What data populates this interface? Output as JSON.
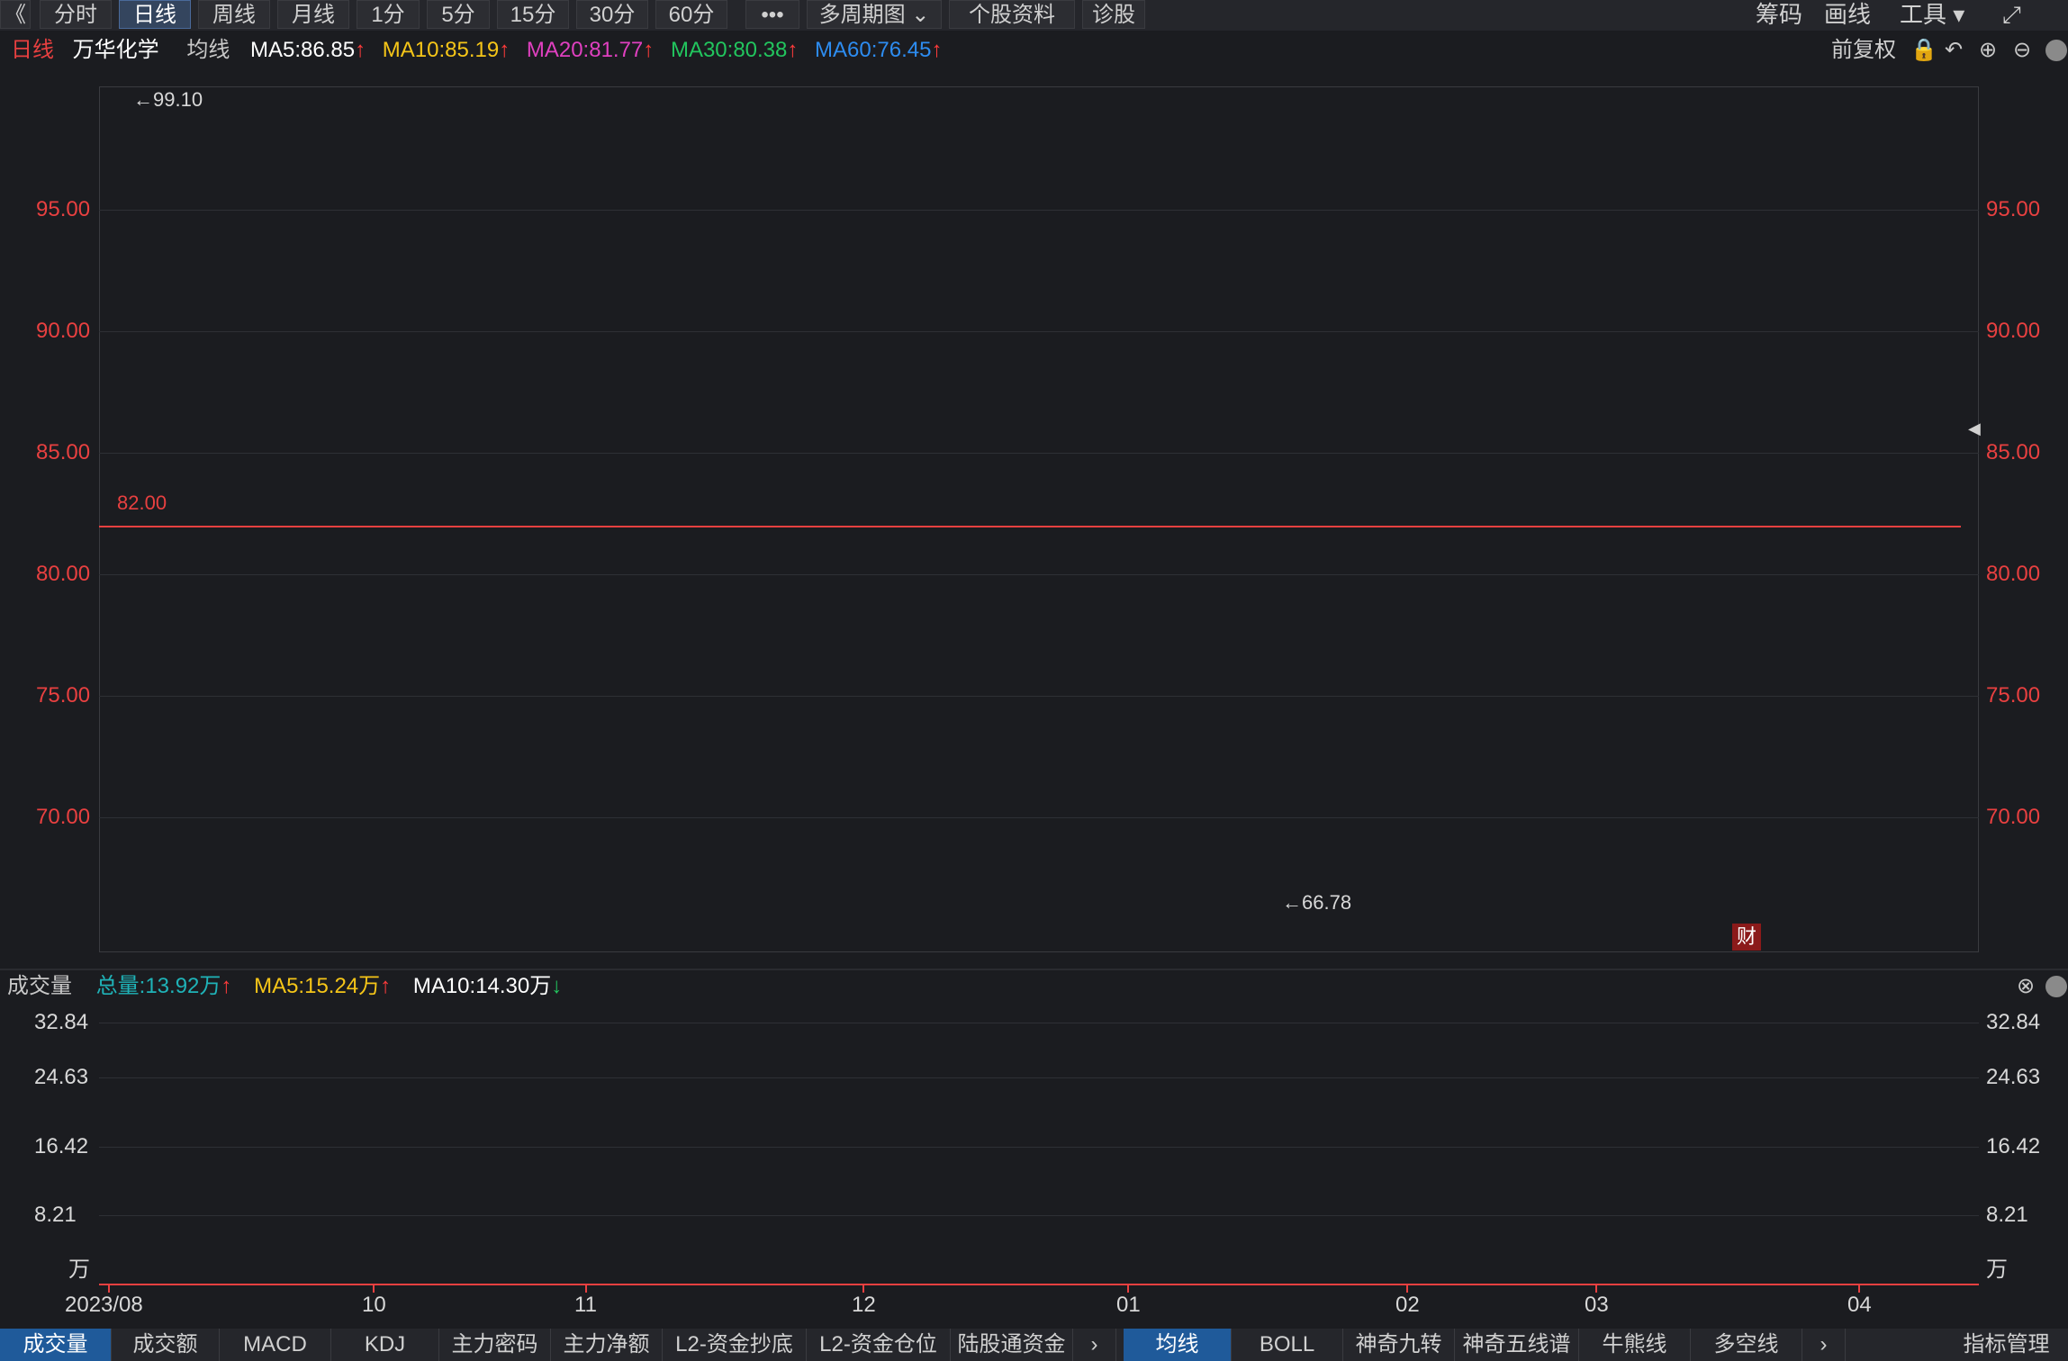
{
  "toolbar": {
    "back": "《",
    "periods": [
      "分时",
      "日线",
      "周线",
      "月线",
      "1分",
      "5分",
      "15分",
      "30分",
      "60分"
    ],
    "more": "•••",
    "multi": "多周期图",
    "stock_info": "个股资料",
    "diagnose": "诊股",
    "chips": "筹码",
    "draw": "画线",
    "tools": "工具"
  },
  "legend": {
    "period": "日线",
    "stock": "万华化学",
    "ma_label": "均线",
    "ma5": "MA5:86.85",
    "ma10": "MA10:85.19",
    "ma20": "MA20:81.77",
    "ma30": "MA30:80.38",
    "ma60": "MA60:76.45",
    "adjust": "前复权"
  },
  "vol_legend": {
    "title": "成交量",
    "total": "总量:13.92万",
    "ma5": "MA5:15.24万",
    "ma10": "MA10:14.30万"
  },
  "colors": {
    "up": "#ff3b3b",
    "down": "#1fb3b8",
    "ma5": "#ffffff",
    "ma10": "#f5c518",
    "ma20": "#e040c0",
    "ma30": "#22c55e",
    "ma60": "#2d8cf0",
    "hline": "#e84040"
  },
  "price_axis": [
    "95.00",
    "90.00",
    "85.00",
    "80.00",
    "75.00",
    "70.00"
  ],
  "volume_axis": [
    "32.84",
    "24.63",
    "16.42",
    "8.21",
    "万"
  ],
  "annotations": {
    "high": "←99.10",
    "low": "←66.78",
    "hline": "82.00",
    "fin_badge": "财"
  },
  "x_labels": [
    "2023/08",
    "10",
    "11",
    "12",
    "01",
    "02",
    "03",
    "04"
  ],
  "tabs_left": [
    "成交量",
    "成交额",
    "MACD",
    "KDJ",
    "主力密码",
    "主力净额",
    "L2-资金抄底",
    "L2-资金仓位",
    "陆股通资金"
  ],
  "tabs_right": [
    "均线",
    "BOLL",
    "神奇九转",
    "神奇五线谱",
    "牛熊线",
    "多空线"
  ],
  "indicator_mgr": "指标管理"
}
